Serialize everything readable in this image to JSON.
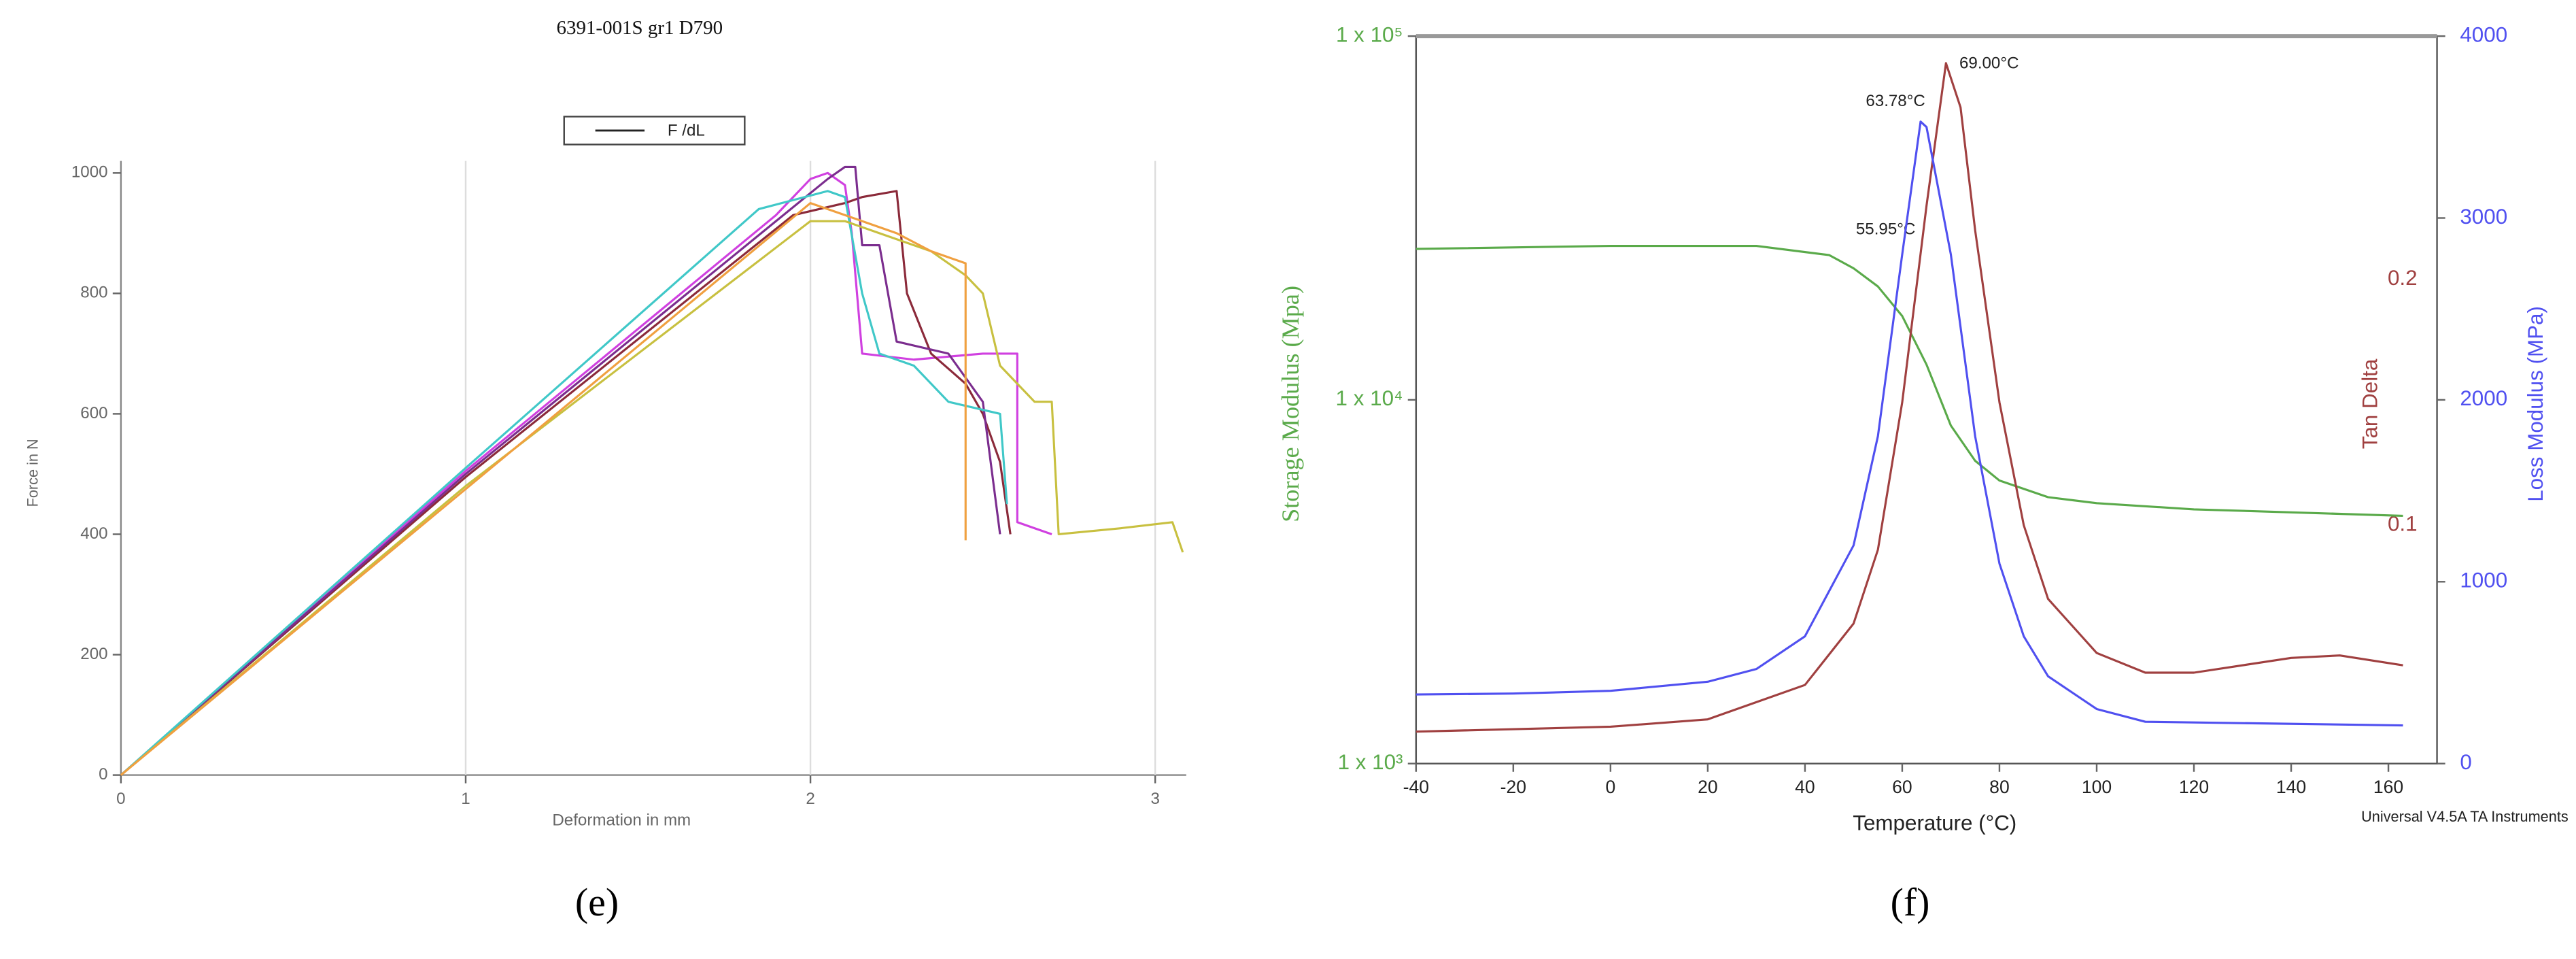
{
  "chart_data": [
    {
      "type": "line",
      "title": "6391-001S gr1 D790",
      "legend": {
        "label": "F /dL",
        "color": "#222222"
      },
      "x_label": "Deformation in mm",
      "y_label": "Force in N",
      "panel_label": "(e)",
      "xlim": [
        0,
        3.09
      ],
      "xticks": [
        0,
        1,
        2,
        3
      ],
      "ylim": [
        0,
        1020
      ],
      "yticks": [
        0,
        200,
        400,
        600,
        800,
        1000
      ],
      "grid": "x",
      "series": [
        {
          "color": "#d040e0",
          "x": [
            0,
            1,
            1.9,
            2.0,
            2.05,
            2.1,
            2.12,
            2.15,
            2.3,
            2.5,
            2.6,
            2.6,
            2.7
          ],
          "values": [
            0,
            505,
            930,
            990,
            1000,
            980,
            900,
            700,
            690,
            700,
            700,
            420,
            400
          ]
        },
        {
          "color": "#8b2a3a",
          "x": [
            0,
            1,
            1.95,
            2.1,
            2.15,
            2.25,
            2.28,
            2.35,
            2.45,
            2.5,
            2.55,
            2.58
          ],
          "values": [
            0,
            495,
            930,
            950,
            960,
            970,
            800,
            700,
            650,
            600,
            520,
            400
          ]
        },
        {
          "color": "#7b2d8e",
          "x": [
            0,
            1,
            1.9,
            2.05,
            2.1,
            2.13,
            2.15,
            2.2,
            2.25,
            2.4,
            2.5,
            2.55
          ],
          "values": [
            0,
            500,
            920,
            990,
            1010,
            1010,
            880,
            880,
            720,
            700,
            620,
            400
          ]
        },
        {
          "color": "#40c8c8",
          "x": [
            0,
            1,
            1.85,
            2.05,
            2.1,
            2.15,
            2.2,
            2.3,
            2.4,
            2.55,
            2.57
          ],
          "values": [
            0,
            510,
            940,
            970,
            960,
            800,
            700,
            680,
            620,
            600,
            450
          ]
        },
        {
          "color": "#c8c040",
          "x": [
            0,
            1,
            2.0,
            2.1,
            2.2,
            2.35,
            2.45,
            2.5,
            2.55,
            2.65,
            2.7,
            2.72,
            2.9,
            3.05,
            3.08
          ],
          "values": [
            0,
            480,
            920,
            920,
            900,
            870,
            830,
            800,
            680,
            620,
            620,
            400,
            410,
            420,
            370
          ]
        },
        {
          "color": "#f0a040",
          "x": [
            0,
            1,
            2.0,
            2.1,
            2.25,
            2.35,
            2.45,
            2.45
          ],
          "values": [
            0,
            475,
            950,
            930,
            900,
            870,
            850,
            390
          ]
        }
      ]
    },
    {
      "type": "line",
      "x_label": "Temperature (°C)",
      "y_label": "Storage Modulus (Mpa)",
      "y2_label": "Loss Modulus (MPa)",
      "y3_label": "Tan Delta",
      "panel_label": "(f)",
      "footer": "Universal V4.5A TA Instruments",
      "annotations": [
        "55.95°C",
        "63.78°C",
        "69.00°C"
      ],
      "axis_colored": true,
      "xlim": [
        -40,
        170
      ],
      "xticks": [
        -40,
        -20,
        0,
        20,
        40,
        60,
        80,
        100,
        120,
        140,
        160
      ],
      "ylog": true,
      "ylim": [
        1000,
        100000
      ],
      "yticks": [
        {
          "value": 1000,
          "label": "1 x 10³"
        },
        {
          "value": 10000,
          "label": "1 x 10⁴"
        },
        {
          "value": 100000,
          "label": "1 x 10⁵"
        }
      ],
      "y2lim": [
        0,
        4000
      ],
      "y2ticks": [
        0,
        1000,
        2000,
        3000,
        4000
      ],
      "y3lim": [
        0.003,
        0.299
      ],
      "y3ticks": [
        0.1,
        0.2
      ],
      "series": [
        {
          "axis": "y",
          "color": "#5aaa4a",
          "x": [
            -40,
            0,
            30,
            45,
            50,
            55,
            60,
            65,
            70,
            75,
            80,
            90,
            100,
            120,
            163
          ],
          "values": [
            26000,
            26500,
            26500,
            25000,
            23000,
            20500,
            17000,
            12500,
            8500,
            6800,
            6000,
            5400,
            5200,
            5000,
            4800
          ]
        },
        {
          "axis": "y3",
          "color": "#a04040",
          "x": [
            -40,
            0,
            20,
            40,
            50,
            55,
            60,
            65,
            69,
            72,
            75,
            80,
            85,
            90,
            100,
            110,
            120,
            140,
            150,
            163
          ],
          "values": [
            0.016,
            0.018,
            0.021,
            0.035,
            0.06,
            0.09,
            0.15,
            0.23,
            0.288,
            0.27,
            0.22,
            0.15,
            0.1,
            0.07,
            0.048,
            0.04,
            0.04,
            0.046,
            0.047,
            0.043
          ]
        },
        {
          "axis": "y2",
          "color": "#5050f0",
          "x": [
            -40,
            -20,
            0,
            20,
            30,
            40,
            50,
            55,
            60,
            63.78,
            65,
            70,
            75,
            80,
            85,
            90,
            100,
            110,
            163
          ],
          "values": [
            380,
            385,
            400,
            450,
            520,
            700,
            1200,
            1800,
            2800,
            3530,
            3500,
            2800,
            1800,
            1100,
            700,
            480,
            300,
            230,
            210
          ]
        }
      ]
    }
  ]
}
